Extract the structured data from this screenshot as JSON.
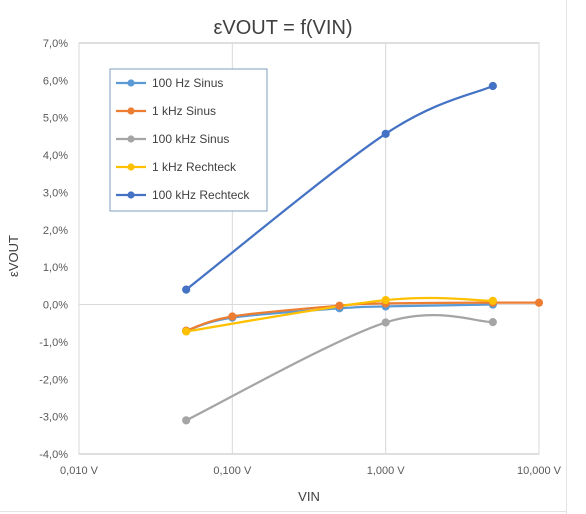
{
  "chart_data": {
    "type": "line",
    "title": "εVOUT = f(VIN)",
    "xlabel": "VIN",
    "ylabel": "εVOUT",
    "x_scale": "log",
    "xlim": [
      0.01,
      10
    ],
    "ylim": [
      -4.0,
      7.0
    ],
    "x_ticks": [
      0.01,
      0.1,
      1,
      10
    ],
    "x_tick_labels": [
      "0,010 V",
      "0,100 V",
      "1,000 V",
      "10,000 V"
    ],
    "y_ticks": [
      -4,
      -3,
      -2,
      -1,
      0,
      1,
      2,
      3,
      4,
      5,
      6,
      7
    ],
    "y_tick_labels": [
      "-4,0%",
      "-3,0%",
      "-2,0%",
      "-1,0%",
      "0,0%",
      "1,0%",
      "2,0%",
      "3,0%",
      "4,0%",
      "5,0%",
      "6,0%",
      "7,0%"
    ],
    "grid": "vertical-major",
    "legend_position": "top-left",
    "series": [
      {
        "name": "100 Hz Sinus",
        "color": "#5B9BD5",
        "x": [
          0.05,
          0.1,
          0.5,
          1,
          5
        ],
        "y": [
          -0.7,
          -0.35,
          -0.1,
          -0.05,
          0.0
        ]
      },
      {
        "name": "1 kHz Sinus",
        "color": "#ED7D31",
        "x": [
          0.05,
          0.1,
          0.5,
          1,
          5,
          10
        ],
        "y": [
          -0.7,
          -0.32,
          -0.03,
          0.03,
          0.05,
          0.05
        ]
      },
      {
        "name": "100 kHz Sinus",
        "color": "#A5A5A5",
        "x": [
          0.05,
          1,
          5
        ],
        "y": [
          -3.1,
          -0.48,
          -0.47
        ]
      },
      {
        "name": "1 kHz Rechteck",
        "color": "#FFC000",
        "x": [
          0.05,
          1,
          5
        ],
        "y": [
          -0.72,
          0.12,
          0.1
        ]
      },
      {
        "name": "100 kHz Rechteck",
        "color": "#4472C4",
        "x": [
          0.05,
          1,
          5
        ],
        "y": [
          0.4,
          4.57,
          5.85
        ]
      }
    ]
  }
}
